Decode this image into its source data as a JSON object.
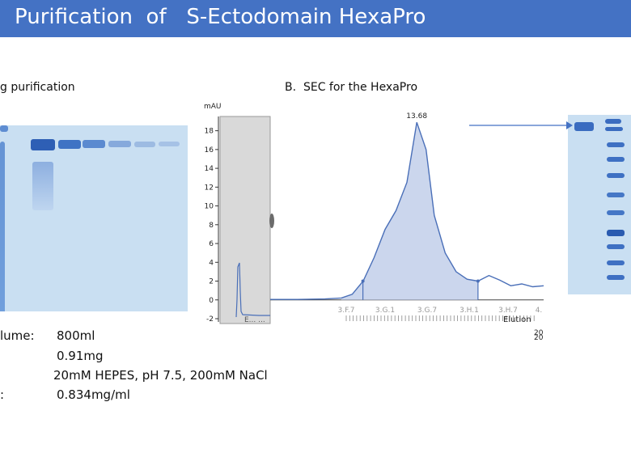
{
  "title": "Purification  of   S-Ectodomain HexaPro",
  "section_a_label": "g purification",
  "section_b_label": "B.  SEC for the HexaPro",
  "info": {
    "volume_label": "lume:",
    "volume_value": "800ml",
    "yield_value": "0.91mg",
    "buffer_value": "20mM HEPES, pH 7.5, 200mM NaCl",
    "conc_label": ":",
    "conc_value": "0.834mg/ml"
  },
  "chart_data": {
    "type": "line",
    "title": "",
    "ylabel": "mAU",
    "xlabel": "Elution",
    "ylim": [
      -2,
      19
    ],
    "yticks": [
      -2,
      0,
      2,
      4,
      6,
      8,
      10,
      12,
      14,
      16,
      18
    ],
    "x_fraction_labels": [
      "3.F.7",
      "3.G.1",
      "3.G.7",
      "3.H.1",
      "3.H.7",
      "4."
    ],
    "x_axis_number": "20",
    "x_axis_number_2": "20",
    "peak_label": "13.68",
    "peak_value": 18.9,
    "peak_x": 13.68,
    "prior_trace_label": "E...  ...",
    "series": [
      {
        "x": [
          11.0,
          11.5,
          12.0,
          12.3,
          12.5,
          12.7,
          12.9,
          13.1,
          13.3,
          13.5,
          13.68,
          13.85,
          14.0,
          14.2,
          14.4,
          14.6,
          14.8,
          15.0,
          15.2,
          15.4,
          15.6,
          15.8,
          16.0
        ],
        "values": [
          0.05,
          0.05,
          0.1,
          0.2,
          0.6,
          2.0,
          4.5,
          7.5,
          9.5,
          12.5,
          18.9,
          16.0,
          9.0,
          5.0,
          3.0,
          2.2,
          2.0,
          2.6,
          2.1,
          1.5,
          1.7,
          1.4,
          1.5
        ]
      }
    ],
    "colors": {
      "line": "#4a6fb8",
      "fill": "#c5d1eb"
    }
  }
}
